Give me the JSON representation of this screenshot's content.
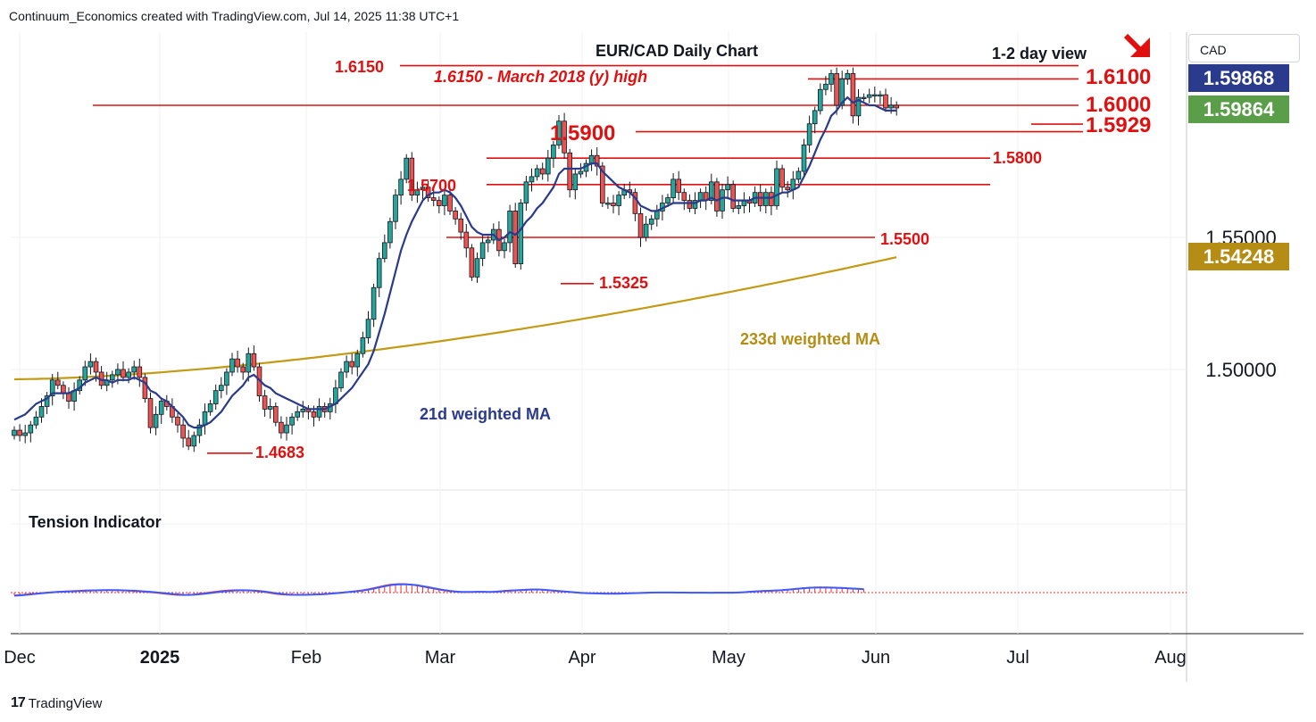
{
  "header": {
    "text": "Continuum_Economics created with TradingView.com, Jul 14, 2025 11:38 UTC+1"
  },
  "currency_label": "CAD",
  "branding": {
    "logo_mark": "17",
    "logo_text": "TradingView"
  },
  "price_tags": {
    "last_bid": "1.59868",
    "last_close": "1.59864",
    "ma233": "1.54248"
  },
  "colors": {
    "up": "#26a69a",
    "down": "#ef5350",
    "candle_edge": "#131722",
    "level_line": "#e01010",
    "ma21": "#2a3a8c",
    "ma233": "#c29a14",
    "tag_blue": "#2a3a8c",
    "tag_green": "#5b9e4a",
    "tag_gold": "#b58d14",
    "tension_red": "#ef3030",
    "tension_blue": "#3d5afe"
  },
  "annotations": {
    "arrow_icon": "arrow-down-right-icon",
    "view": "1-2 day view"
  },
  "chart_data": {
    "type": "candlestick",
    "title": "EUR/CAD Daily Chart",
    "x_ticks": [
      "Dec",
      "2025",
      "Feb",
      "Mar",
      "Apr",
      "May",
      "Jun",
      "Jul",
      "Aug"
    ],
    "y_ticks": [
      "1.50000",
      "1.55000"
    ],
    "ylim": [
      1.4513,
      1.6245
    ],
    "levels": [
      {
        "value": 1.615,
        "label": "1.6150",
        "text": "1.6150 - March 2018 (y) high"
      },
      {
        "value": 1.61,
        "label": "1.6100"
      },
      {
        "value": 1.6,
        "label": "1.6000"
      },
      {
        "value": 1.5929,
        "label": "1.5929"
      },
      {
        "value": 1.59,
        "label": "1.5900"
      },
      {
        "value": 1.58,
        "label": "1.5800"
      },
      {
        "value": 1.57,
        "label": "1.5700"
      },
      {
        "value": 1.55,
        "label": "1.5500"
      },
      {
        "value": 1.5325,
        "label": "1.5325"
      },
      {
        "value": 1.4683,
        "label": "1.4683"
      }
    ],
    "ma_labels": {
      "ma21": "21d weighted MA",
      "ma233": "233d weighted MA"
    },
    "closes": [
      1.477,
      1.475,
      1.476,
      1.479,
      1.482,
      1.486,
      1.49,
      1.496,
      1.494,
      1.491,
      1.488,
      1.492,
      1.496,
      1.501,
      1.503,
      1.499,
      1.494,
      1.496,
      1.498,
      1.5,
      1.497,
      1.499,
      1.501,
      1.497,
      1.489,
      1.478,
      1.483,
      1.488,
      1.486,
      1.482,
      1.479,
      1.474,
      1.471,
      1.475,
      1.479,
      1.484,
      1.487,
      1.492,
      1.494,
      1.499,
      1.504,
      1.501,
      1.499,
      1.506,
      1.501,
      1.49,
      1.485,
      1.486,
      1.48,
      1.476,
      1.479,
      1.482,
      1.484,
      1.485,
      1.484,
      1.482,
      1.486,
      1.484,
      1.487,
      1.493,
      1.499,
      1.503,
      1.501,
      1.506,
      1.512,
      1.519,
      1.531,
      1.542,
      1.548,
      1.556,
      1.566,
      1.572,
      1.58,
      1.566,
      1.568,
      1.569,
      1.565,
      1.564,
      1.562,
      1.566,
      1.56,
      1.557,
      1.552,
      1.546,
      1.535,
      1.542,
      1.548,
      1.549,
      1.553,
      1.545,
      1.548,
      1.56,
      1.54,
      1.563,
      1.571,
      1.573,
      1.576,
      1.574,
      1.58,
      1.585,
      1.594,
      1.582,
      1.568,
      1.574,
      1.575,
      1.578,
      1.581,
      1.577,
      1.563,
      1.563,
      1.562,
      1.566,
      1.568,
      1.567,
      1.559,
      1.55,
      1.555,
      1.557,
      1.56,
      1.563,
      1.565,
      1.572,
      1.567,
      1.564,
      1.561,
      1.564,
      1.567,
      1.564,
      1.571,
      1.56,
      1.568,
      1.57,
      1.561,
      1.562,
      1.564,
      1.563,
      1.567,
      1.562,
      1.567,
      1.562,
      1.576,
      1.569,
      1.568,
      1.572,
      1.575,
      1.585,
      1.593,
      1.598,
      1.606,
      1.608,
      1.612,
      1.6,
      1.61,
      1.612,
      1.596,
      1.603,
      1.603,
      1.604,
      1.604,
      1.604,
      1.599,
      1.6,
      1.599
    ],
    "ma21": [
      1.481,
      1.482,
      1.483,
      1.485,
      1.487,
      1.488,
      1.489,
      1.491,
      1.491,
      1.491,
      1.491,
      1.492,
      1.493,
      1.495,
      1.496,
      1.497,
      1.496,
      1.496,
      1.495,
      1.496,
      1.496,
      1.496,
      1.497,
      1.496,
      1.495,
      1.492,
      1.491,
      1.489,
      1.488,
      1.486,
      1.484,
      1.482,
      1.479,
      1.478,
      1.478,
      1.479,
      1.48,
      1.482,
      1.484,
      1.487,
      1.49,
      1.492,
      1.494,
      1.497,
      1.498,
      1.496,
      1.494,
      1.493,
      1.491,
      1.49,
      1.489,
      1.488,
      1.487,
      1.486,
      1.485,
      1.485,
      1.485,
      1.485,
      1.486,
      1.487,
      1.489,
      1.491,
      1.493,
      1.496,
      1.499,
      1.502,
      1.507,
      1.514,
      1.521,
      1.529,
      1.537,
      1.545,
      1.551,
      1.556,
      1.56,
      1.564,
      1.566,
      1.567,
      1.567,
      1.568,
      1.567,
      1.565,
      1.562,
      1.558,
      1.554,
      1.552,
      1.551,
      1.551,
      1.551,
      1.549,
      1.55,
      1.552,
      1.551,
      1.553,
      1.556,
      1.558,
      1.561,
      1.563,
      1.566,
      1.569,
      1.574,
      1.576,
      1.576,
      1.576,
      1.576,
      1.577,
      1.578,
      1.578,
      1.575,
      1.573,
      1.571,
      1.569,
      1.568,
      1.567,
      1.565,
      1.562,
      1.561,
      1.56,
      1.56,
      1.561,
      1.562,
      1.563,
      1.563,
      1.563,
      1.563,
      1.563,
      1.564,
      1.564,
      1.565,
      1.564,
      1.565,
      1.565,
      1.564,
      1.564,
      1.564,
      1.564,
      1.565,
      1.565,
      1.565,
      1.565,
      1.566,
      1.567,
      1.567,
      1.568,
      1.569,
      1.573,
      1.577,
      1.582,
      1.587,
      1.591,
      1.596,
      1.598,
      1.601,
      1.603,
      1.601,
      1.602,
      1.601,
      1.6,
      1.6,
      1.599,
      1.598,
      1.598,
      1.598
    ],
    "ma233_start": 1.4963,
    "ma233_end": 1.5425,
    "tension": [
      -0.0166,
      -0.0145,
      -0.0118,
      -0.0087,
      -0.0054,
      -0.0022,
      0.0008,
      0.0033,
      0.0055,
      0.0071,
      0.0085,
      0.0099,
      0.0115,
      0.013,
      0.014,
      0.0148,
      0.0153,
      0.0154,
      0.0151,
      0.0142,
      0.0128,
      0.0112,
      0.0093,
      0.007,
      0.0045,
      0.0018,
      -0.0011,
      -0.0046,
      -0.0086,
      -0.0121,
      -0.0145,
      -0.0153,
      -0.0142,
      -0.0115,
      -0.0076,
      -0.003,
      0.0015,
      0.0058,
      0.0096,
      0.0126,
      0.0145,
      0.0151,
      0.0145,
      0.0131,
      0.0107,
      0.007,
      0.0026,
      -0.0024,
      -0.0074,
      -0.0113,
      -0.0134,
      -0.014,
      -0.0137,
      -0.0133,
      -0.0127,
      -0.0118,
      -0.0104,
      -0.0082,
      -0.0054,
      -0.0024,
      0.0005,
      0.0034,
      0.0066,
      0.0102,
      0.0147,
      0.0205,
      0.0276,
      0.0353,
      0.0426,
      0.0483,
      0.0516,
      0.0524,
      0.0509,
      0.0474,
      0.0423,
      0.0362,
      0.0298,
      0.0236,
      0.0178,
      0.0127,
      0.0084,
      0.0051,
      0.0031,
      0.0027,
      0.004,
      0.0051,
      0.0049,
      0.004,
      0.0047,
      0.0073,
      0.0105,
      0.0128,
      0.0144,
      0.0159,
      0.0177,
      0.0194,
      0.0193,
      0.0171,
      0.0142,
      0.0116,
      0.0092,
      0.0063,
      0.0031,
      0.0001,
      -0.0022,
      -0.0036,
      -0.0043,
      -0.0049,
      -0.0056,
      -0.0063,
      -0.0065,
      -0.0059,
      -0.0048,
      -0.0036,
      -0.0025,
      -0.0014,
      -0.0003,
      0.0004,
      0.0006,
      0.0006,
      0.0005,
      0.0003,
      0.0,
      -0.0002,
      -0.0004,
      -0.0006,
      -0.0008,
      -0.0009,
      -0.0009,
      -0.0008,
      -0.0007,
      -0.0006,
      -0.0003,
      0.0008,
      0.0029,
      0.0055,
      0.0076,
      0.0091,
      0.0105,
      0.012,
      0.0134,
      0.0153,
      0.0179,
      0.0212,
      0.0246,
      0.0276,
      0.03,
      0.0311,
      0.0313,
      0.0305,
      0.0297,
      0.0286,
      0.0271,
      0.0254,
      0.0234,
      0.0216,
      0.0194
    ],
    "tension_signal": [
      -0.0191,
      -0.0166,
      -0.0138,
      -0.0107,
      -0.0075,
      -0.0043,
      -0.0013,
      0.0014,
      0.0037,
      0.0056,
      0.0071,
      0.0085,
      0.0098,
      0.0112,
      0.0124,
      0.0134,
      0.0141,
      0.0145,
      0.0147,
      0.0144,
      0.0137,
      0.0126,
      0.0111,
      0.0093,
      0.0071,
      0.0046,
      0.0017,
      -0.0015,
      -0.005,
      -0.0085,
      -0.0114,
      -0.0134,
      -0.014,
      -0.0129,
      -0.0104,
      -0.0068,
      -0.0026,
      0.0016,
      0.0055,
      0.0089,
      0.0116,
      0.0134,
      0.0141,
      0.0137,
      0.0123,
      0.0097,
      0.006,
      0.0014,
      -0.0036,
      -0.008,
      -0.0112,
      -0.0129,
      -0.0135,
      -0.0134,
      -0.0129,
      -0.0121,
      -0.0108,
      -0.009,
      -0.0066,
      -0.0038,
      -0.0009,
      0.0021,
      0.0052,
      0.0087,
      0.0129,
      0.0181,
      0.0243,
      0.0314,
      0.0384,
      0.0444,
      0.0485,
      0.0504,
      0.0501,
      0.0481,
      0.0442,
      0.0389,
      0.0329,
      0.0267,
      0.0207,
      0.0152,
      0.0105,
      0.0068,
      0.0044,
      0.0037,
      0.0044,
      0.0051,
      0.0049,
      0.0044,
      0.0049,
      0.0067,
      0.0093,
      0.0116,
      0.0134,
      0.0151,
      0.017,
      0.0186,
      0.0187,
      0.0172,
      0.0149,
      0.0124,
      0.0099,
      0.0071,
      0.004,
      0.0011,
      -0.0015,
      -0.0032,
      -0.0042,
      -0.0049,
      -0.0057,
      -0.0064,
      -0.0068,
      -0.0063,
      -0.0054,
      -0.0042,
      -0.0031,
      -0.002,
      -0.0009,
      -0.0001,
      0.0003,
      0.0005,
      0.0005,
      0.0003,
      0.0001,
      -0.0001,
      -0.0003,
      -0.0005,
      -0.0007,
      -0.0008,
      -0.0009,
      -0.0008,
      -0.0007,
      -0.0006,
      -0.0004,
      0.0005,
      0.0024,
      0.0049,
      0.0072,
      0.0088,
      0.0102,
      0.0116,
      0.013,
      0.0148,
      0.0172,
      0.0203,
      0.0236,
      0.0267,
      0.0291,
      0.0305,
      0.0311,
      0.0308,
      0.0301,
      0.0292,
      0.0279,
      0.0263,
      0.0245,
      0.0227,
      0.0208
    ],
    "tension_title": "Tension Indicator"
  }
}
